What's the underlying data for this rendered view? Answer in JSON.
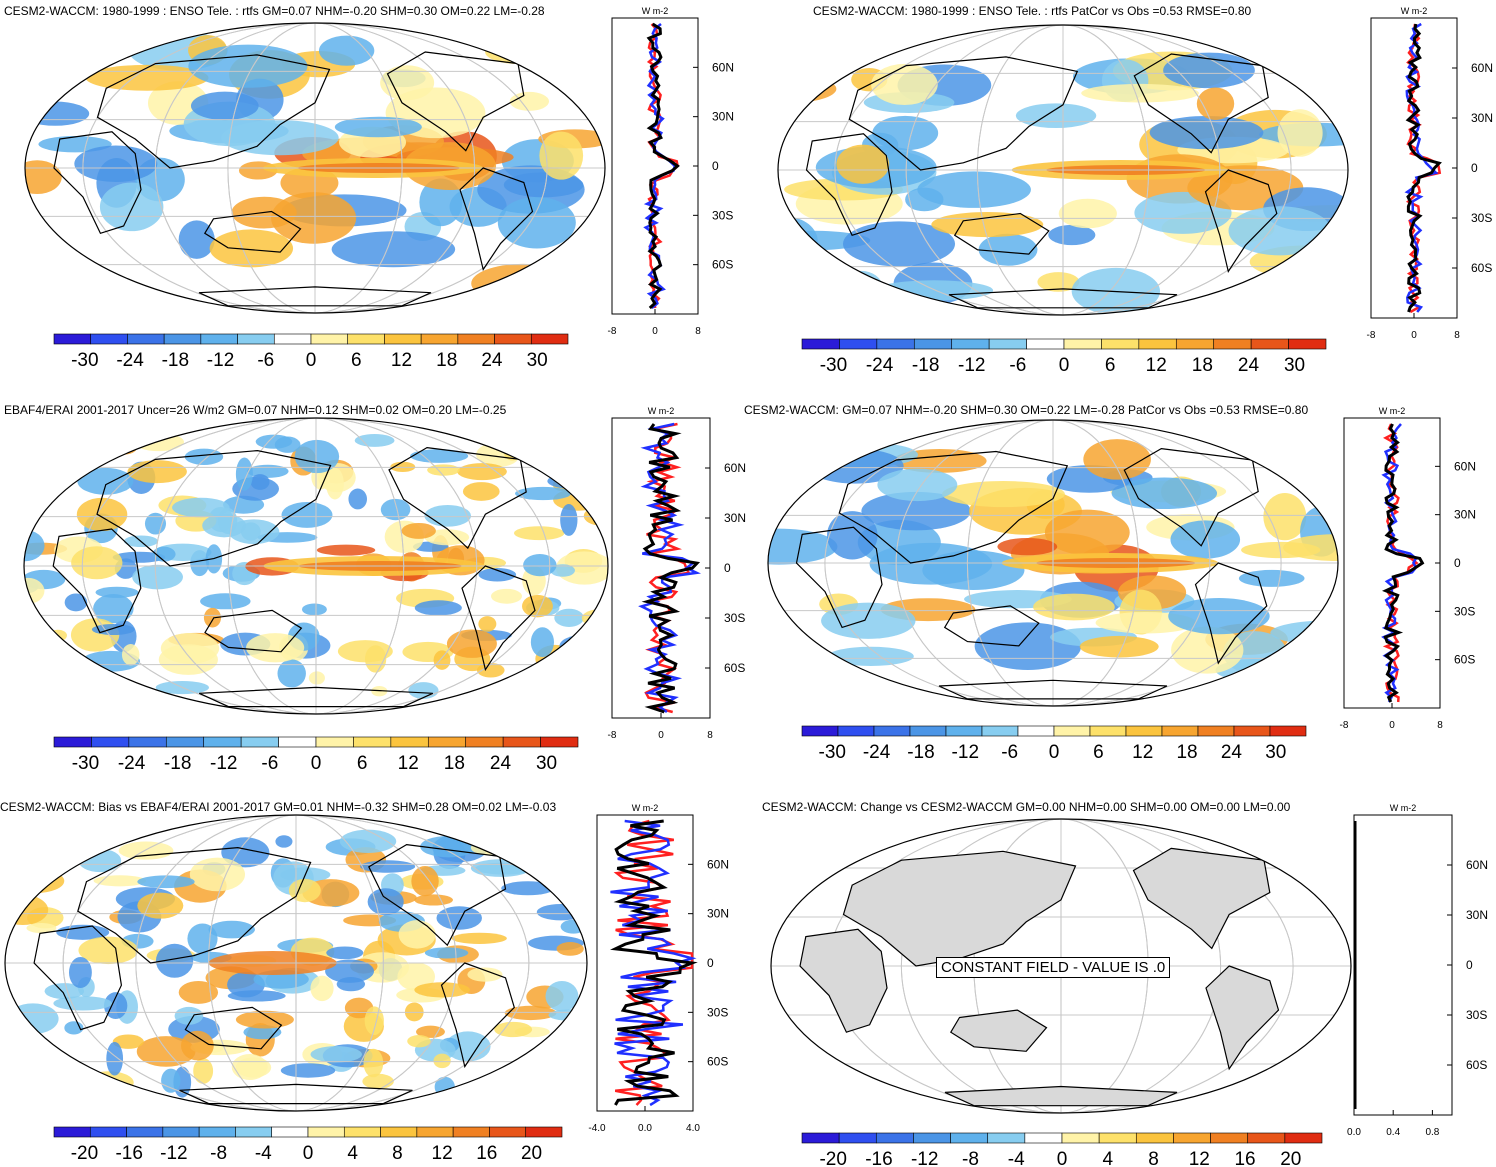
{
  "chart_data": [
    {
      "type": "heatmap",
      "title": "CESM2-WACCM: 1980-1999 : ENSO Tele. : rtfs GM=0.07 NHM=-0.20 SHM=0.30 OM=0.22 LM=-0.28",
      "colorbar": {
        "ticks": [
          -30,
          -24,
          -18,
          -12,
          -6,
          0,
          6,
          12,
          18,
          24,
          30
        ]
      },
      "zonal_mean": {
        "units": "W m-2",
        "lat_ticks": [
          "60N",
          "30N",
          "0",
          "30S",
          "60S"
        ],
        "x_ticks": [
          "-8",
          "0",
          "8"
        ],
        "xlim": [
          -8,
          8
        ],
        "series_colors": [
          "#ff2020",
          "#2030ff",
          "#000000"
        ]
      }
    },
    {
      "type": "heatmap",
      "title": "CESM2-WACCM: 1980-1999 : ENSO Tele. : rtfs PatCor vs Obs =0.53 RMSE=0.80",
      "colorbar": {
        "ticks": [
          -30,
          -24,
          -18,
          -12,
          -6,
          0,
          6,
          12,
          18,
          24,
          30
        ]
      },
      "zonal_mean": {
        "units": "W m-2",
        "lat_ticks": [
          "60N",
          "30N",
          "0",
          "30S",
          "60S"
        ],
        "x_ticks": [
          "-8",
          "0",
          "8"
        ],
        "xlim": [
          -8,
          8
        ],
        "series_colors": [
          "#ff2020",
          "#2030ff",
          "#000000"
        ]
      }
    },
    {
      "type": "heatmap",
      "title": "EBAF4/ERAI 2001-2017 Uncer=26 W/m2 GM=0.07 NHM=0.12 SHM=0.02 OM=0.20 LM=-0.25",
      "colorbar": {
        "ticks": [
          -30,
          -24,
          -18,
          -12,
          -6,
          0,
          6,
          12,
          18,
          24,
          30
        ]
      },
      "zonal_mean": {
        "units": "W m-2",
        "lat_ticks": [
          "60N",
          "30N",
          "0",
          "30S",
          "60S"
        ],
        "x_ticks": [
          "-8",
          "0",
          "8"
        ],
        "xlim": [
          -8,
          8
        ],
        "series_colors": [
          "#ff2020",
          "#2030ff",
          "#000000"
        ]
      }
    },
    {
      "type": "heatmap",
      "title": "CESM2-WACCM: GM=0.07 NHM=-0.20 SHM=0.30 OM=0.22 LM=-0.28 PatCor vs Obs =0.53 RMSE=0.80",
      "colorbar": {
        "ticks": [
          -30,
          -24,
          -18,
          -12,
          -6,
          0,
          6,
          12,
          18,
          24,
          30
        ]
      },
      "zonal_mean": {
        "units": "W m-2",
        "lat_ticks": [
          "60N",
          "30N",
          "0",
          "30S",
          "60S"
        ],
        "x_ticks": [
          "-8",
          "0",
          "8"
        ],
        "xlim": [
          -8,
          8
        ],
        "series_colors": [
          "#ff2020",
          "#2030ff",
          "#000000"
        ]
      }
    },
    {
      "type": "heatmap",
      "title": "CESM2-WACCM: Bias vs EBAF4/ERAI 2001-2017 GM=0.01 NHM=-0.32 SHM=0.28 OM=0.02 LM=-0.03",
      "colorbar": {
        "ticks": [
          -20,
          -16,
          -12,
          -8,
          -4,
          0,
          4,
          8,
          12,
          16,
          20
        ]
      },
      "zonal_mean": {
        "units": "W m-2",
        "lat_ticks": [
          "60N",
          "30N",
          "0",
          "30S",
          "60S"
        ],
        "x_ticks": [
          "-4.0",
          "0.0",
          "4.0"
        ],
        "xlim": [
          -4,
          4
        ],
        "series_colors": [
          "#ff2020",
          "#2030ff",
          "#000000"
        ]
      }
    },
    {
      "type": "heatmap",
      "title": "CESM2-WACCM: Change vs CESM2-WACCM GM=0.00 NHM=0.00 SHM=0.00 OM=0.00 LM=0.00",
      "colorbar": {
        "ticks": [
          -20,
          -16,
          -12,
          -8,
          -4,
          0,
          4,
          8,
          12,
          16,
          20
        ]
      },
      "note": "CONSTANT FIELD - VALUE IS .0",
      "zonal_mean": {
        "units": "W m-2",
        "lat_ticks": [
          "60N",
          "30N",
          "0",
          "30S",
          "60S"
        ],
        "x_ticks": [
          "0.0",
          "0.4",
          "0.8"
        ],
        "xlim": [
          0,
          1
        ],
        "series_colors": [
          "#000000"
        ]
      }
    }
  ],
  "palette": [
    "#2b1bd8",
    "#2f4ff0",
    "#3b73e8",
    "#4b95e6",
    "#5fb1ec",
    "#87cdf0",
    "#ffffff",
    "#fff3a8",
    "#fde16a",
    "#fbc43e",
    "#f7a530",
    "#f08022",
    "#e8561a",
    "#e02d12"
  ]
}
